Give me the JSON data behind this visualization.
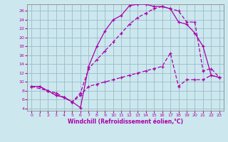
{
  "title": "",
  "xlabel": "Windchill (Refroidissement éolien,°C)",
  "xlim": [
    -0.5,
    23.5
  ],
  "ylim": [
    3.5,
    27.5
  ],
  "xticks": [
    0,
    1,
    2,
    3,
    4,
    5,
    6,
    7,
    8,
    9,
    10,
    11,
    12,
    13,
    14,
    15,
    16,
    17,
    18,
    19,
    20,
    21,
    22,
    23
  ],
  "yticks": [
    4,
    6,
    8,
    10,
    12,
    14,
    16,
    18,
    20,
    22,
    24,
    26
  ],
  "bg_color": "#cce8ee",
  "line_color": "#aa00aa",
  "grid_color": "#99bbcc",
  "line1_x": [
    0,
    1,
    2,
    3,
    4,
    5,
    6,
    7,
    8,
    9,
    10,
    11,
    12,
    13,
    14,
    15,
    16,
    17,
    18,
    19,
    20,
    21,
    22,
    23
  ],
  "line1_y": [
    9,
    9,
    8,
    7,
    6.5,
    5.5,
    4.2,
    13.5,
    18,
    21.5,
    24,
    25,
    27.2,
    27.5,
    27.5,
    27,
    27,
    26.5,
    23.5,
    23,
    21,
    18,
    11.5,
    11
  ],
  "line2_x": [
    0,
    2,
    3,
    4,
    5,
    6,
    7,
    8,
    9,
    10,
    11,
    12,
    13,
    14,
    15,
    16,
    17,
    18,
    19,
    20,
    21,
    22,
    23
  ],
  "line2_y": [
    9,
    8,
    7.5,
    6.5,
    5.5,
    7.5,
    13,
    15,
    17,
    19,
    21,
    23,
    24.5,
    25.5,
    26.5,
    27,
    26.5,
    26,
    23.5,
    23.5,
    12.5,
    13,
    11
  ],
  "line3_x": [
    0,
    1,
    2,
    3,
    4,
    5,
    6,
    7,
    8,
    9,
    10,
    11,
    12,
    13,
    14,
    15,
    16,
    17,
    18,
    19,
    20,
    21,
    22,
    23
  ],
  "line3_y": [
    9,
    9,
    8,
    7,
    6.5,
    5.5,
    7,
    9,
    9.5,
    10,
    10.5,
    11,
    11.5,
    12,
    12.5,
    13,
    13.5,
    16.5,
    9,
    10.5,
    10.5,
    10.5,
    11.5,
    11
  ]
}
